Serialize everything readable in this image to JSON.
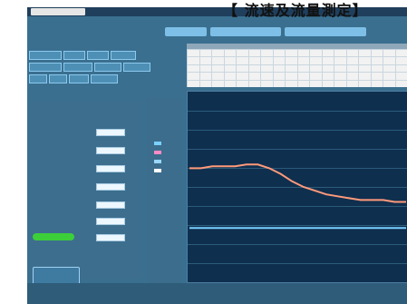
{
  "heading": "【 流速及流量測定】",
  "window": {
    "title": ""
  },
  "tabs": [
    {
      "label": ""
    },
    {
      "label": ""
    },
    {
      "label": ""
    }
  ],
  "buttons": [
    {
      "label": ""
    },
    {
      "label": ""
    },
    {
      "label": ""
    },
    {
      "label": ""
    },
    {
      "label": ""
    },
    {
      "label": ""
    },
    {
      "label": ""
    },
    {
      "label": ""
    },
    {
      "label": ""
    },
    {
      "label": ""
    },
    {
      "label": ""
    },
    {
      "label": ""
    }
  ],
  "left_panel": {
    "fields": [
      {
        "label": ""
      },
      {
        "label": ""
      },
      {
        "label": ""
      },
      {
        "label": ""
      },
      {
        "label": ""
      },
      {
        "label": ""
      },
      {
        "label": ""
      },
      {
        "label": ""
      },
      {
        "label": ""
      },
      {
        "label": ""
      }
    ],
    "exit_label": "",
    "status": ""
  },
  "legend_colors": [
    "#7ad0ff",
    "#ff8bc4",
    "#9ad7ff",
    "#ffffff"
  ],
  "chart_data": {
    "type": "line",
    "title": "",
    "xlabel": "",
    "ylabel": "",
    "series": [
      {
        "color": "#7ad0ff",
        "values": [
          0.28,
          0.28,
          0.28,
          0.28,
          0.28,
          0.28,
          0.28,
          0.28,
          0.28,
          0.28,
          0.28,
          0.28,
          0.28,
          0.28,
          0.28,
          0.28,
          0.28,
          0.28,
          0.28,
          0.28
        ]
      },
      {
        "color": "#ff9a7a",
        "values": [
          0.6,
          0.6,
          0.61,
          0.61,
          0.61,
          0.62,
          0.62,
          0.6,
          0.57,
          0.53,
          0.5,
          0.48,
          0.46,
          0.45,
          0.44,
          0.43,
          0.43,
          0.43,
          0.42,
          0.42
        ]
      }
    ],
    "ylim": [
      0,
      1
    ],
    "grid": true
  }
}
